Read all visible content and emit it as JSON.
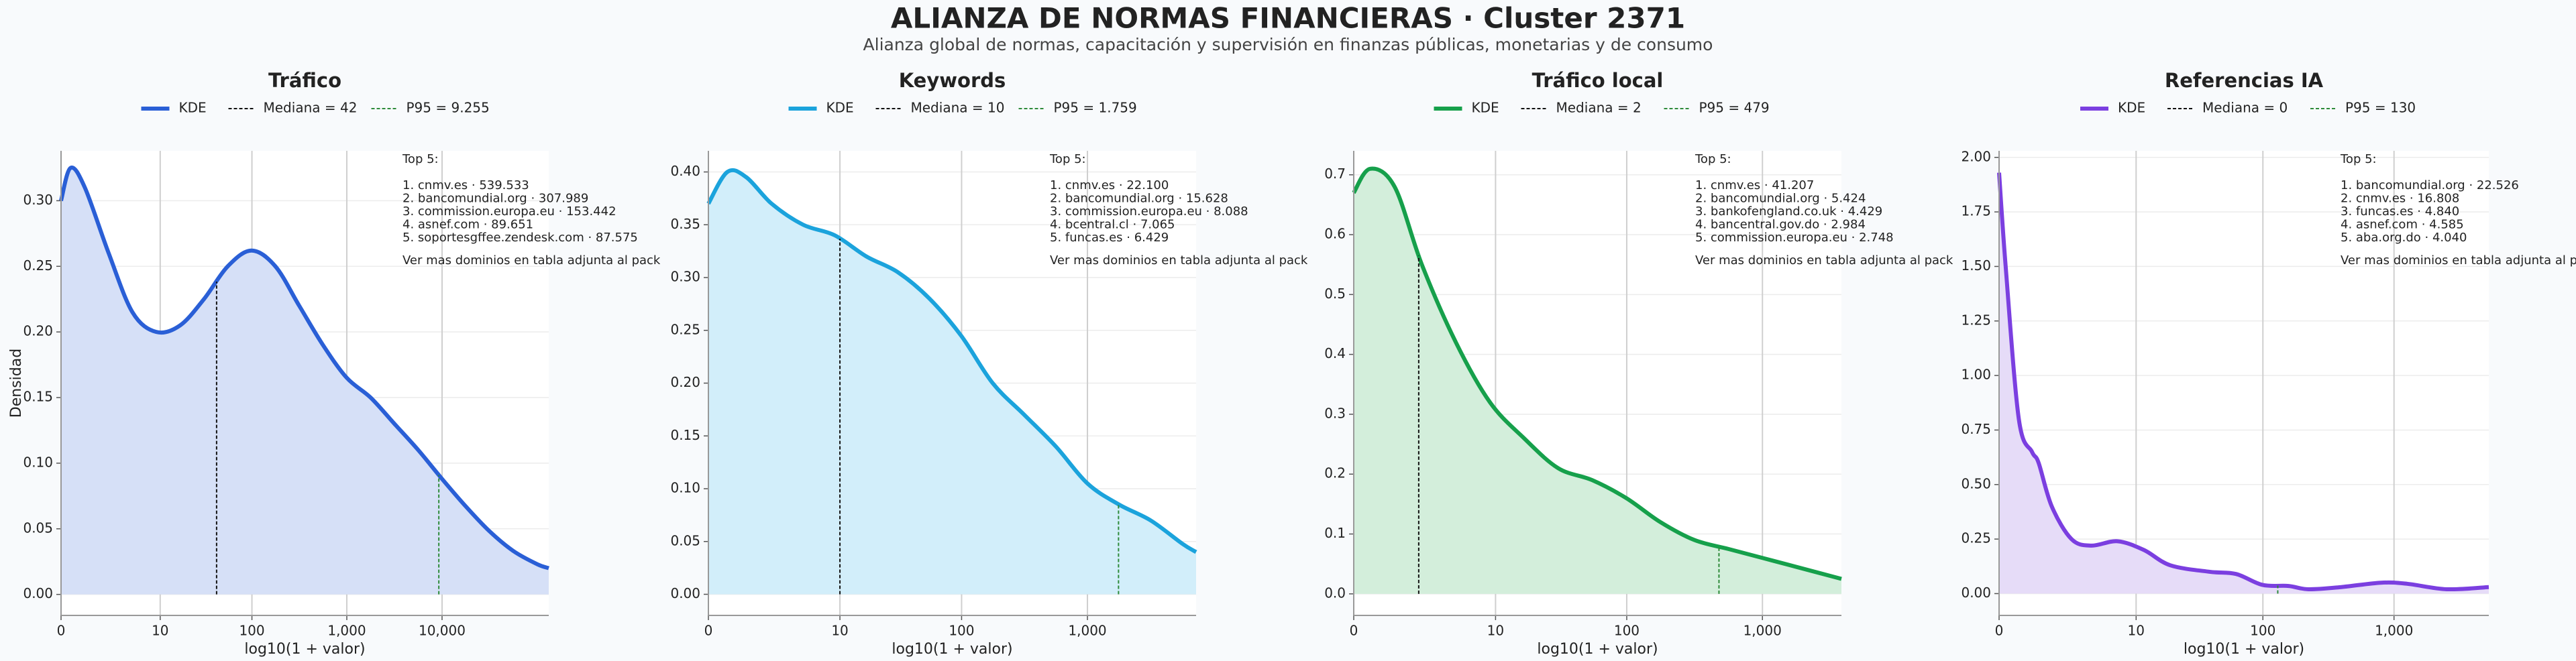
{
  "title": "ALIANZA DE NORMAS FINANCIERAS · Cluster 2371",
  "subtitle": "Alianza global de normas, capacitación y supervisión en finanzas públicas, monetarias y de consumo",
  "chart_data": [
    {
      "type": "line",
      "title": "Tráfico",
      "x_label": "log10(1 + valor)",
      "y_label": "Densidad",
      "x": [
        0,
        0.1,
        0.25,
        0.5,
        0.75,
        1.0,
        1.25,
        1.5,
        1.75,
        2.0,
        2.25,
        2.5,
        2.75,
        3.0,
        3.25,
        3.5,
        3.75,
        4.0,
        4.25,
        4.5,
        4.75,
        5.0,
        5.12
      ],
      "series": [
        {
          "name": "KDE",
          "color": "#2a5fd6",
          "fill": "#d6e0f7",
          "values": [
            0.3,
            0.325,
            0.31,
            0.26,
            0.215,
            0.2,
            0.205,
            0.225,
            0.25,
            0.262,
            0.25,
            0.22,
            0.19,
            0.165,
            0.15,
            0.13,
            0.11,
            0.088,
            0.067,
            0.048,
            0.033,
            0.023,
            0.02
          ]
        }
      ],
      "reference_lines": [
        {
          "name": "Mediana = 42",
          "x": 1.633,
          "color": "#111111"
        },
        {
          "name": "P95 = 9.255",
          "x": 3.966,
          "color": "#2e8b3a"
        }
      ],
      "xlim": [
        0,
        5.12
      ],
      "xticks": [
        0,
        {
          "value": 1.041,
          "label": "10"
        },
        {
          "value": 2.004,
          "label": "100"
        },
        {
          "value": 3.0,
          "label": "1,000"
        },
        {
          "value": 4.0,
          "label": "10,000"
        }
      ],
      "ylim": [
        -0.016,
        0.338
      ],
      "yticks": [
        {
          "value": 0,
          "label": "0.00"
        },
        {
          "value": 0.05,
          "label": "0.05"
        },
        {
          "value": 0.1,
          "label": "0.10"
        },
        {
          "value": 0.15,
          "label": "0.15"
        },
        {
          "value": 0.2,
          "label": "0.20"
        },
        {
          "value": 0.25,
          "label": "0.25"
        },
        {
          "value": 0.3,
          "label": "0.30"
        }
      ],
      "grid": true,
      "annotation": {
        "title": "Top 5:",
        "lines": [
          "1. cnmv.es · 539.533",
          "2. bancomundial.org · 307.989",
          "3. commission.europa.eu · 153.442",
          "4. asnef.com · 89.651",
          "5. soportesgffee.zendesk.com · 87.575"
        ],
        "note": "Ver mas dominios en tabla adjunta al pack"
      }
    },
    {
      "type": "line",
      "title": "Keywords",
      "x_label": "log10(1 + valor)",
      "x": [
        0,
        0.15,
        0.3,
        0.5,
        0.75,
        1.0,
        1.25,
        1.5,
        1.75,
        2.0,
        2.25,
        2.5,
        2.75,
        3.0,
        3.25,
        3.5,
        3.75,
        3.86
      ],
      "series": [
        {
          "name": "KDE",
          "color": "#1ba3dc",
          "fill": "#d2eefa",
          "values": [
            0.37,
            0.4,
            0.395,
            0.37,
            0.35,
            0.34,
            0.32,
            0.305,
            0.28,
            0.245,
            0.2,
            0.17,
            0.14,
            0.105,
            0.085,
            0.07,
            0.048,
            0.04
          ]
        }
      ],
      "reference_lines": [
        {
          "name": "Mediana = 10",
          "x": 1.041,
          "color": "#111111"
        },
        {
          "name": "P95 = 1.759",
          "x": 3.246,
          "color": "#2e8b3a"
        }
      ],
      "xlim": [
        0,
        3.86
      ],
      "xticks": [
        0,
        {
          "value": 1.041,
          "label": "10"
        },
        {
          "value": 2.004,
          "label": "100"
        },
        {
          "value": 3.0,
          "label": "1,000"
        }
      ],
      "ylim": [
        -0.02,
        0.42
      ],
      "yticks": [
        {
          "value": 0,
          "label": "0.00"
        },
        {
          "value": 0.05,
          "label": "0.05"
        },
        {
          "value": 0.1,
          "label": "0.10"
        },
        {
          "value": 0.15,
          "label": "0.15"
        },
        {
          "value": 0.2,
          "label": "0.20"
        },
        {
          "value": 0.25,
          "label": "0.25"
        },
        {
          "value": 0.3,
          "label": "0.30"
        },
        {
          "value": 0.35,
          "label": "0.35"
        },
        {
          "value": 0.4,
          "label": "0.40"
        }
      ],
      "grid": true,
      "annotation": {
        "title": "Top 5:",
        "lines": [
          "1. cnmv.es · 22.100",
          "2. bancomundial.org · 15.628",
          "3. commission.europa.eu · 8.088",
          "4. bcentral.cl · 7.065",
          "5. funcas.es · 6.429"
        ],
        "note": "Ver mas dominios en tabla adjunta al pack"
      }
    },
    {
      "type": "line",
      "title": "Tráfico local",
      "x_label": "log10(1 + valor)",
      "x": [
        0,
        0.12,
        0.3,
        0.5,
        0.75,
        1.0,
        1.25,
        1.5,
        1.75,
        2.0,
        2.25,
        2.5,
        2.75,
        3.0,
        3.25,
        3.58
      ],
      "series": [
        {
          "name": "KDE",
          "color": "#16a04b",
          "fill": "#d3eedb",
          "values": [
            0.67,
            0.71,
            0.68,
            0.55,
            0.42,
            0.32,
            0.26,
            0.21,
            0.19,
            0.16,
            0.12,
            0.09,
            0.075,
            0.06,
            0.045,
            0.025
          ]
        }
      ],
      "reference_lines": [
        {
          "name": "Mediana = 2",
          "x": 0.477,
          "color": "#111111"
        },
        {
          "name": "P95 = 479",
          "x": 2.681,
          "color": "#2e8b3a"
        }
      ],
      "xlim": [
        0,
        3.58
      ],
      "xticks": [
        0,
        {
          "value": 1.041,
          "label": "10"
        },
        {
          "value": 2.004,
          "label": "100"
        },
        {
          "value": 3.0,
          "label": "1,000"
        }
      ],
      "ylim": [
        -0.036,
        0.74
      ],
      "yticks": [
        {
          "value": 0,
          "label": "0.0"
        },
        {
          "value": 0.1,
          "label": "0.1"
        },
        {
          "value": 0.2,
          "label": "0.2"
        },
        {
          "value": 0.3,
          "label": "0.3"
        },
        {
          "value": 0.4,
          "label": "0.4"
        },
        {
          "value": 0.5,
          "label": "0.5"
        },
        {
          "value": 0.6,
          "label": "0.6"
        },
        {
          "value": 0.7,
          "label": "0.7"
        }
      ],
      "grid": true,
      "annotation": {
        "title": "Top 5:",
        "lines": [
          "1. cnmv.es · 41.207",
          "2. bancomundial.org · 5.424",
          "3. bankofengland.co.uk · 4.429",
          "4. bancentral.gov.do · 2.984",
          "5. commission.europa.eu · 2.748"
        ],
        "note": "Ver mas dominios en tabla adjunta al pack"
      }
    },
    {
      "type": "line",
      "title": "Referencias IA",
      "x_label": "log10(1 + valor)",
      "x": [
        0,
        0.05,
        0.15,
        0.25,
        0.3,
        0.4,
        0.55,
        0.7,
        0.9,
        1.1,
        1.3,
        1.6,
        1.8,
        2.0,
        2.2,
        2.35,
        2.6,
        2.9,
        3.1,
        3.4,
        3.72
      ],
      "series": [
        {
          "name": "KDE",
          "color": "#7b3fe0",
          "fill": "#e6dcf8",
          "values": [
            1.93,
            1.5,
            0.8,
            0.65,
            0.6,
            0.4,
            0.25,
            0.22,
            0.24,
            0.2,
            0.13,
            0.1,
            0.09,
            0.04,
            0.035,
            0.02,
            0.03,
            0.05,
            0.045,
            0.02,
            0.03
          ]
        }
      ],
      "reference_lines": [
        {
          "name": "Mediana = 0",
          "x": 0,
          "color": "#111111"
        },
        {
          "name": "P95 = 130",
          "x": 2.117,
          "color": "#2e8b3a"
        }
      ],
      "xlim": [
        0,
        3.72
      ],
      "xticks": [
        0,
        {
          "value": 1.041,
          "label": "10"
        },
        {
          "value": 2.004,
          "label": "100"
        },
        {
          "value": 3.0,
          "label": "1,000"
        }
      ],
      "ylim": [
        -0.1,
        2.03
      ],
      "yticks": [
        {
          "value": 0,
          "label": "0.00"
        },
        {
          "value": 0.25,
          "label": "0.25"
        },
        {
          "value": 0.5,
          "label": "0.50"
        },
        {
          "value": 0.75,
          "label": "0.75"
        },
        {
          "value": 1.0,
          "label": "1.00"
        },
        {
          "value": 1.25,
          "label": "1.25"
        },
        {
          "value": 1.5,
          "label": "1.50"
        },
        {
          "value": 1.75,
          "label": "1.75"
        },
        {
          "value": 2.0,
          "label": "2.00"
        }
      ],
      "grid": true,
      "annotation": {
        "title": "Top 5:",
        "lines": [
          "1. bancomundial.org · 22.526",
          "2. cnmv.es · 16.808",
          "3. funcas.es · 4.840",
          "4. asnef.com · 4.585",
          "5. aba.org.do · 4.040"
        ],
        "note": "Ver mas dominios en tabla adjunta al pack"
      }
    }
  ]
}
